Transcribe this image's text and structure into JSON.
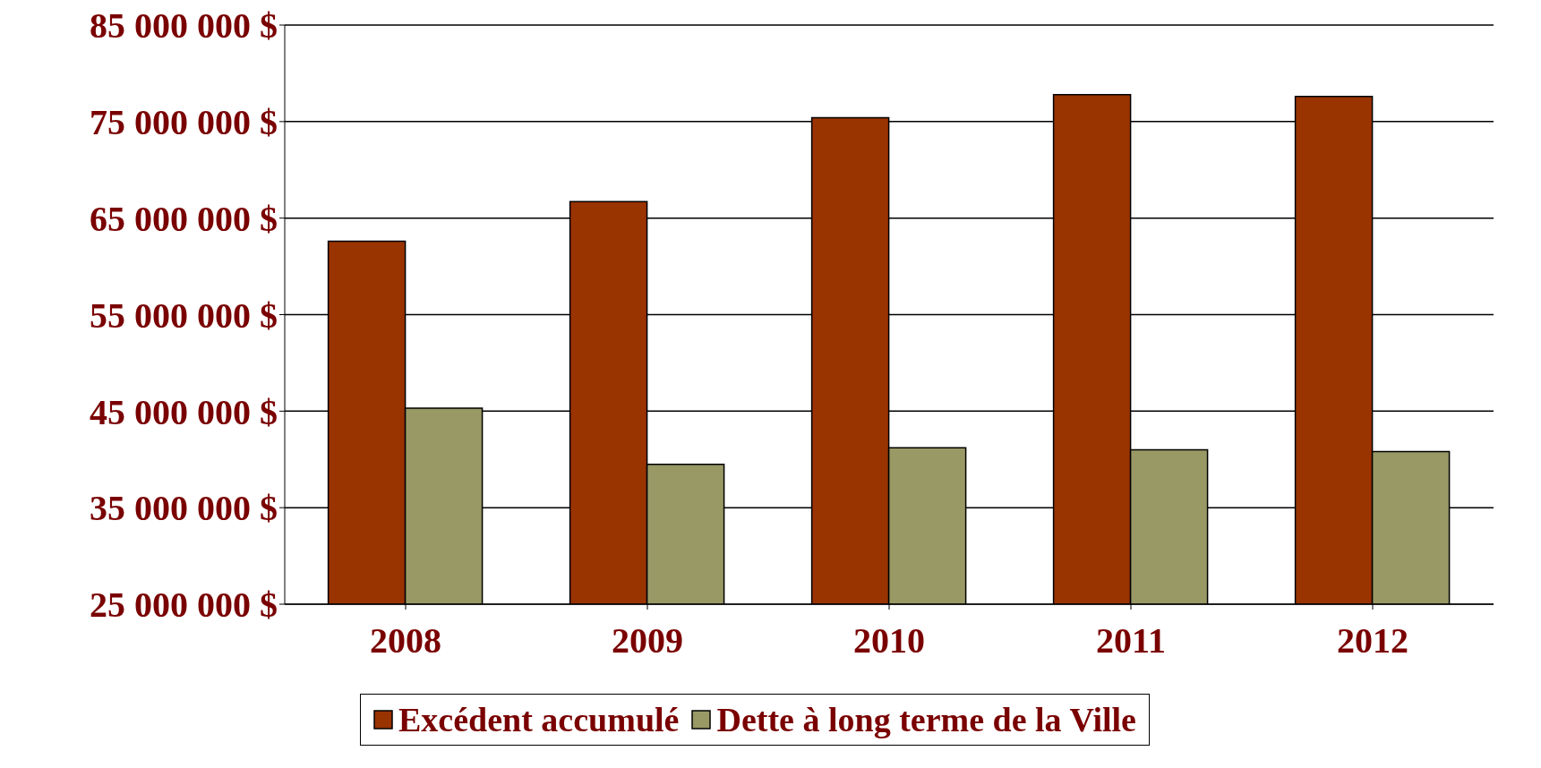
{
  "chart_data": {
    "type": "bar",
    "categories": [
      "2008",
      "2009",
      "2010",
      "2011",
      "2012"
    ],
    "series": [
      {
        "name": "Excédent accumulé",
        "color": "#993300",
        "values": [
          62600000,
          66700000,
          75400000,
          77800000,
          77600000
        ]
      },
      {
        "name": "Dette à long terme de la Ville",
        "color": "#999966",
        "values": [
          45300000,
          39500000,
          41200000,
          41000000,
          40800000
        ]
      }
    ],
    "ylim": [
      25000000,
      85000000
    ],
    "yticks": [
      {
        "value": 25000000,
        "label": "25 000 000 $"
      },
      {
        "value": 35000000,
        "label": "35 000 000 $"
      },
      {
        "value": 45000000,
        "label": "45 000 000 $"
      },
      {
        "value": 55000000,
        "label": "55 000 000 $"
      },
      {
        "value": 65000000,
        "label": "65 000 000 $"
      },
      {
        "value": 75000000,
        "label": "75 000 000 $"
      },
      {
        "value": 85000000,
        "label": "85 000 000 $"
      }
    ],
    "grid": "y",
    "legend": "bottom"
  }
}
